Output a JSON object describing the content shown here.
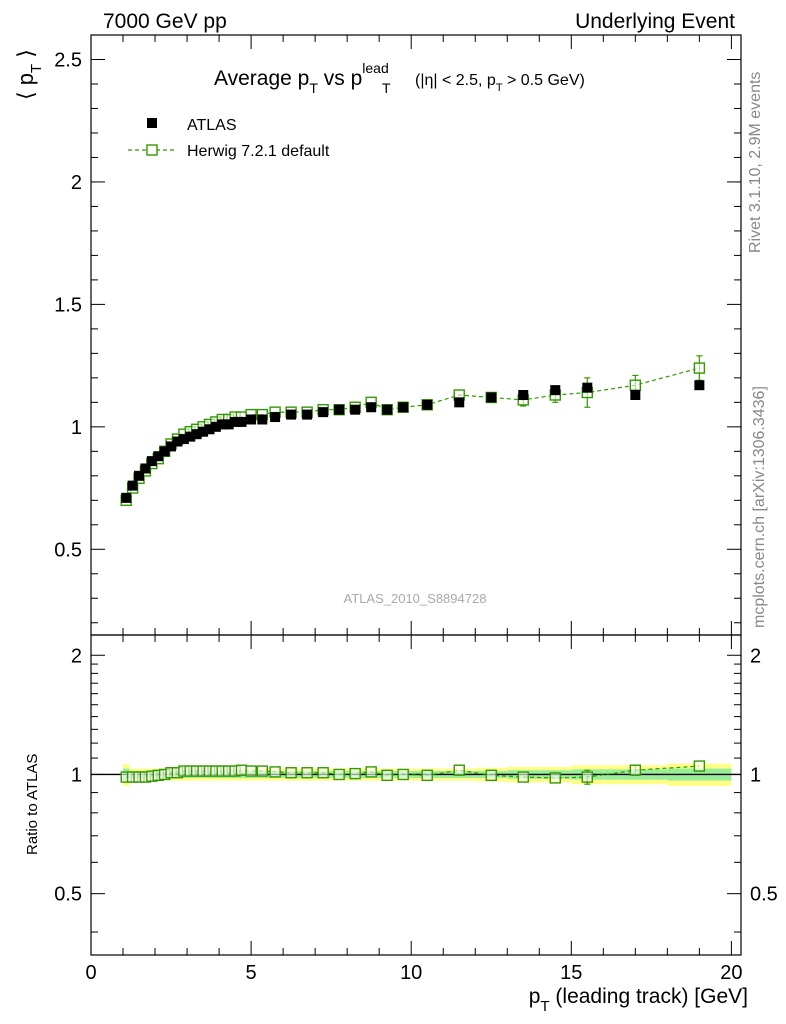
{
  "header": {
    "left": "7000 GeV pp",
    "right": "Underlying Event"
  },
  "side_labels": {
    "rivet": "Rivet 3.1.10,  2.9M events",
    "mcplots": "mcplots.cern.ch [arXiv:1306.3436]"
  },
  "analysis_id": "ATLAS_2010_S8894728",
  "chart_data": [
    {
      "type": "scatter",
      "title": {
        "main": "Average p",
        "main_sub": "T",
        "vs": " vs p",
        "vs_sup": "lead",
        "vs_sub": "T",
        "cut1": "(|η| < 2.5, p",
        "cut_sub": "T",
        "cut2": " > 0.5 GeV)"
      },
      "ylabel": {
        "open": "⟨ p",
        "sub": "T",
        "close": " ⟩"
      },
      "xlim": [
        0,
        20.3
      ],
      "ylim": [
        0.15,
        2.6
      ],
      "x_ticks": [
        0,
        5,
        10,
        15,
        20
      ],
      "y_ticks": [
        0.5,
        1,
        1.5,
        2,
        2.5
      ],
      "y_tick_labels": [
        "0.5",
        "1",
        "1.5",
        "2",
        "2.5"
      ],
      "legend": {
        "placement": "top-left",
        "entries": [
          "ATLAS",
          "Herwig 7.2.1 default"
        ]
      },
      "series": [
        {
          "name": "ATLAS",
          "marker": "filled-square",
          "color": "#000000",
          "x": [
            1.1,
            1.3,
            1.5,
            1.7,
            1.9,
            2.1,
            2.3,
            2.5,
            2.7,
            2.9,
            3.1,
            3.3,
            3.5,
            3.7,
            3.9,
            4.1,
            4.3,
            4.5,
            4.7,
            5.0,
            5.35,
            5.75,
            6.25,
            6.75,
            7.25,
            7.75,
            8.25,
            8.75,
            9.25,
            9.75,
            10.5,
            11.5,
            12.5,
            13.5,
            14.5,
            15.5,
            17.0,
            19.0
          ],
          "y": [
            0.71,
            0.76,
            0.8,
            0.83,
            0.86,
            0.88,
            0.9,
            0.92,
            0.94,
            0.95,
            0.96,
            0.97,
            0.98,
            0.99,
            1.0,
            1.01,
            1.01,
            1.02,
            1.02,
            1.03,
            1.03,
            1.04,
            1.05,
            1.05,
            1.06,
            1.07,
            1.07,
            1.08,
            1.07,
            1.08,
            1.09,
            1.1,
            1.12,
            1.13,
            1.15,
            1.16,
            1.13,
            1.17
          ]
        },
        {
          "name": "Herwig 7.2.1 default",
          "marker": "open-square",
          "line": "dashed",
          "color": "#339900",
          "x": [
            1.1,
            1.3,
            1.5,
            1.7,
            1.9,
            2.1,
            2.3,
            2.5,
            2.7,
            2.9,
            3.1,
            3.3,
            3.5,
            3.7,
            3.9,
            4.1,
            4.3,
            4.5,
            4.7,
            5.0,
            5.35,
            5.75,
            6.25,
            6.75,
            7.25,
            7.75,
            8.25,
            8.75,
            9.25,
            9.75,
            10.5,
            11.5,
            12.5,
            13.5,
            14.5,
            15.5,
            17.0,
            19.0
          ],
          "y": [
            0.7,
            0.75,
            0.79,
            0.82,
            0.85,
            0.87,
            0.9,
            0.93,
            0.95,
            0.97,
            0.98,
            0.99,
            1.0,
            1.01,
            1.02,
            1.03,
            1.03,
            1.04,
            1.04,
            1.05,
            1.05,
            1.06,
            1.06,
            1.06,
            1.07,
            1.07,
            1.08,
            1.1,
            1.07,
            1.08,
            1.09,
            1.13,
            1.12,
            1.11,
            1.13,
            1.14,
            1.17,
            1.24
          ],
          "yerr": [
            0.01,
            0.01,
            0.01,
            0.01,
            0.01,
            0.01,
            0.01,
            0.01,
            0.01,
            0.01,
            0.01,
            0.01,
            0.01,
            0.01,
            0.01,
            0.01,
            0.01,
            0.01,
            0.01,
            0.01,
            0.01,
            0.01,
            0.01,
            0.01,
            0.01,
            0.01,
            0.01,
            0.01,
            0.01,
            0.01,
            0.01,
            0.015,
            0.02,
            0.025,
            0.03,
            0.06,
            0.04,
            0.05
          ]
        }
      ]
    },
    {
      "type": "scatter",
      "xlabel": {
        "p": "p",
        "sub": "T",
        "rest": " (leading track) [GeV]"
      },
      "ylabel": "Ratio to ATLAS",
      "xlim": [
        0,
        20.3
      ],
      "ylim": [
        0.35,
        2.25
      ],
      "x_ticks": [
        0,
        5,
        10,
        15,
        20
      ],
      "x_tick_labels": [
        "0",
        "5",
        "10",
        "15",
        "20"
      ],
      "y_ticks": [
        0.5,
        1,
        2
      ],
      "y_tick_labels": [
        "0.5",
        "1",
        "2"
      ],
      "reference_line": 1,
      "uncertainty_bands": {
        "x_edges": [
          1.0,
          1.2,
          1.4,
          1.6,
          1.8,
          2.0,
          2.2,
          2.4,
          2.6,
          2.8,
          3.0,
          3.2,
          3.4,
          3.6,
          3.8,
          4.0,
          4.2,
          4.4,
          4.6,
          4.8,
          5.2,
          5.5,
          6.0,
          6.5,
          7.0,
          7.5,
          8.0,
          8.5,
          9.0,
          9.5,
          10.0,
          11.0,
          12.0,
          13.0,
          14.0,
          15.0,
          16.0,
          18.0,
          20.0
        ],
        "inner_halfwidth": [
          0.035,
          0.02,
          0.02,
          0.02,
          0.02,
          0.02,
          0.02,
          0.02,
          0.02,
          0.02,
          0.02,
          0.02,
          0.02,
          0.02,
          0.02,
          0.02,
          0.02,
          0.02,
          0.02,
          0.02,
          0.02,
          0.02,
          0.02,
          0.02,
          0.02,
          0.02,
          0.02,
          0.02,
          0.02,
          0.02,
          0.02,
          0.02,
          0.02,
          0.025,
          0.025,
          0.03,
          0.03,
          0.035
        ],
        "outer_halfwidth": [
          0.065,
          0.035,
          0.035,
          0.035,
          0.035,
          0.035,
          0.035,
          0.035,
          0.035,
          0.035,
          0.035,
          0.035,
          0.035,
          0.035,
          0.035,
          0.035,
          0.035,
          0.035,
          0.035,
          0.035,
          0.035,
          0.035,
          0.035,
          0.035,
          0.035,
          0.035,
          0.035,
          0.035,
          0.035,
          0.035,
          0.035,
          0.035,
          0.04,
          0.045,
          0.045,
          0.055,
          0.055,
          0.065
        ],
        "inner_color": "#99ee99",
        "outer_color": "#ffff88"
      },
      "series": [
        {
          "name": "Herwig 7.2.1 default",
          "marker": "open-square",
          "line": "dashed",
          "color": "#339900",
          "x": [
            1.1,
            1.3,
            1.5,
            1.7,
            1.9,
            2.1,
            2.3,
            2.5,
            2.7,
            2.9,
            3.1,
            3.3,
            3.5,
            3.7,
            3.9,
            4.1,
            4.3,
            4.5,
            4.7,
            5.0,
            5.35,
            5.75,
            6.25,
            6.75,
            7.25,
            7.75,
            8.25,
            8.75,
            9.25,
            9.75,
            10.5,
            11.5,
            12.5,
            13.5,
            14.5,
            15.5,
            17.0,
            19.0
          ],
          "y": [
            0.985,
            0.985,
            0.985,
            0.985,
            0.99,
            0.995,
            1.0,
            1.01,
            1.01,
            1.02,
            1.02,
            1.02,
            1.02,
            1.02,
            1.02,
            1.02,
            1.02,
            1.02,
            1.025,
            1.02,
            1.02,
            1.015,
            1.01,
            1.01,
            1.01,
            1.0,
            1.005,
            1.015,
            0.995,
            1.0,
            0.995,
            1.025,
            0.995,
            0.985,
            0.98,
            0.985,
            1.025,
            1.05
          ],
          "yerr": [
            0.01,
            0.01,
            0.01,
            0.01,
            0.01,
            0.01,
            0.01,
            0.01,
            0.01,
            0.01,
            0.01,
            0.01,
            0.01,
            0.01,
            0.01,
            0.01,
            0.01,
            0.01,
            0.01,
            0.01,
            0.01,
            0.01,
            0.01,
            0.01,
            0.01,
            0.01,
            0.01,
            0.01,
            0.01,
            0.01,
            0.01,
            0.015,
            0.015,
            0.02,
            0.02,
            0.04,
            0.03,
            0.03
          ]
        }
      ]
    }
  ]
}
